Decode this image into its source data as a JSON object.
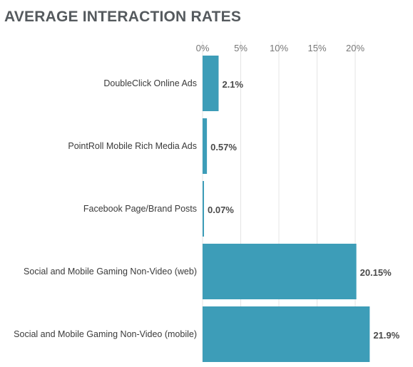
{
  "chart_data": {
    "type": "bar",
    "orientation": "horizontal",
    "title": "AVERAGE INTERACTION RATES",
    "categories": [
      "DoubleClick Online Ads",
      "PointRoll Mobile Rich Media Ads",
      "Facebook Page/Brand Posts",
      "Social and Mobile Gaming Non-Video (web)",
      "Social and Mobile Gaming Non-Video (mobile)"
    ],
    "values": [
      2.1,
      0.57,
      0.07,
      20.15,
      21.9
    ],
    "value_labels": [
      "2.1%",
      "0.57%",
      "0.07%",
      "20.15%",
      "21.9%"
    ],
    "ticks": [
      0,
      5,
      10,
      15,
      20
    ],
    "tick_labels": [
      "0%",
      "5%",
      "10%",
      "15%",
      "20%"
    ],
    "xlim": [
      0,
      22
    ],
    "axis_position": "top",
    "grid": true,
    "bar_color": "#3d9db8",
    "xlabel": "",
    "ylabel": ""
  }
}
